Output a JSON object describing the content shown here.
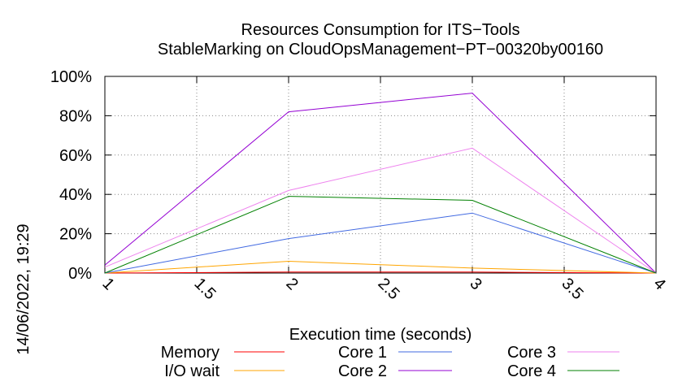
{
  "chart_data": {
    "type": "line",
    "title": "Resources Consumption for ITS−Tools",
    "subtitle": "StableMarking on CloudOpsManagement−PT−00320by00160",
    "xlabel": "Execution time (seconds)",
    "ylabel": "",
    "timestamp": "14/06/2022, 19:29",
    "xlim": [
      1,
      4
    ],
    "ylim": [
      0,
      100
    ],
    "x_ticks": [
      "1",
      "1.5",
      "2",
      "2.5",
      "3",
      "3.5",
      "4"
    ],
    "y_ticks": [
      "0%",
      "20%",
      "40%",
      "60%",
      "80%",
      "100%"
    ],
    "grid": true,
    "legend_position": "bottom",
    "x": [
      1,
      2,
      3,
      4
    ],
    "series": [
      {
        "name": "Memory",
        "color": "#ff0000",
        "values": [
          0,
          0.5,
          0.5,
          0
        ]
      },
      {
        "name": "I/O wait",
        "color": "#ffa500",
        "values": [
          0,
          6,
          2.5,
          0
        ]
      },
      {
        "name": "Core 1",
        "color": "#4169e1",
        "values": [
          0,
          17.5,
          30.5,
          0
        ]
      },
      {
        "name": "Core 2",
        "color": "#9400d3",
        "values": [
          4,
          82,
          91.5,
          0
        ]
      },
      {
        "name": "Core 3",
        "color": "#ee82ee",
        "values": [
          3,
          42,
          63.5,
          0
        ]
      },
      {
        "name": "Core 4",
        "color": "#008000",
        "values": [
          0,
          39,
          37,
          0
        ]
      }
    ]
  }
}
